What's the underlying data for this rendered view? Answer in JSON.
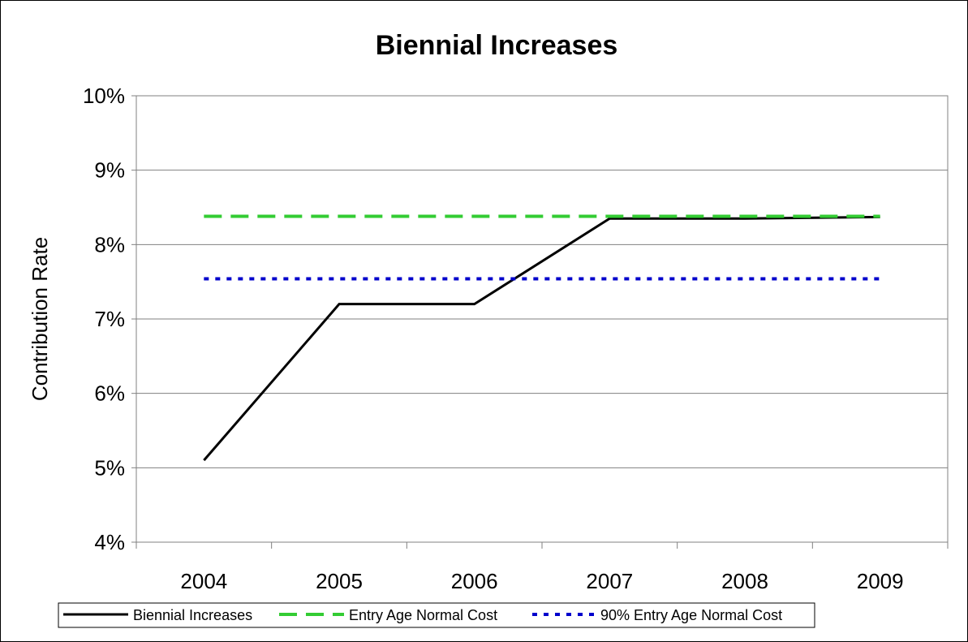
{
  "chart_data": {
    "type": "line",
    "title": "Biennial Increases",
    "xlabel": "",
    "ylabel": "Contribution Rate",
    "categories": [
      "2004",
      "2005",
      "2006",
      "2007",
      "2008",
      "2009"
    ],
    "y_ticks": [
      "4%",
      "5%",
      "6%",
      "7%",
      "8%",
      "9%",
      "10%"
    ],
    "ylim": [
      4,
      10
    ],
    "grid": true,
    "legend_position": "bottom",
    "series": [
      {
        "name": "Biennial Increases",
        "values": [
          5.1,
          7.2,
          7.2,
          8.35,
          8.35,
          8.37
        ],
        "color": "#000000",
        "style": "solid"
      },
      {
        "name": "Entry Age Normal Cost",
        "values": [
          8.38,
          8.38,
          8.38,
          8.38,
          8.38,
          8.38
        ],
        "color": "#33cc33",
        "style": "dashed"
      },
      {
        "name": "90% Entry Age Normal Cost",
        "values": [
          7.54,
          7.54,
          7.54,
          7.54,
          7.54,
          7.54
        ],
        "color": "#0000cc",
        "style": "dotted"
      }
    ]
  }
}
